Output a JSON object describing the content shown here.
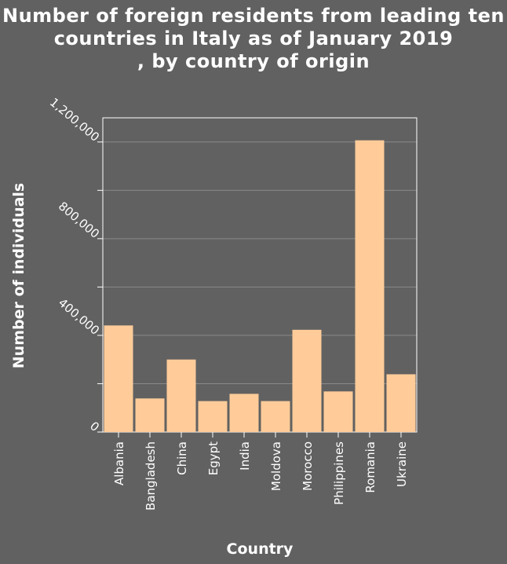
{
  "chart_data": {
    "type": "bar",
    "title": "Number of foreign residents from leading ten countries in Italy as of January 2019\n, by country of origin",
    "xlabel": "Country",
    "ylabel": "Number of individuals",
    "categories": [
      "Albania",
      "Bangladesh",
      "China",
      "Egypt",
      "India",
      "Moldova",
      "Morocco",
      "Philippines",
      "Romania",
      "Ukraine"
    ],
    "values": [
      441000,
      139000,
      300000,
      128000,
      158000,
      128000,
      423000,
      168000,
      1207000,
      239000
    ],
    "yticks": [
      {
        "value": 0,
        "label": "0"
      },
      {
        "value": 400000,
        "label": "400,000"
      },
      {
        "value": 800000,
        "label": "800,000"
      },
      {
        "value": 1200000,
        "label": "1,200,000"
      }
    ],
    "minor_yticks": [
      200000,
      600000,
      1000000
    ],
    "ylim": [
      0,
      1300000
    ],
    "grid": true,
    "colors": {
      "bar": "#ffcc99",
      "background": "#616161",
      "grid": "#8a8a8a",
      "text": "#ffffff"
    }
  }
}
